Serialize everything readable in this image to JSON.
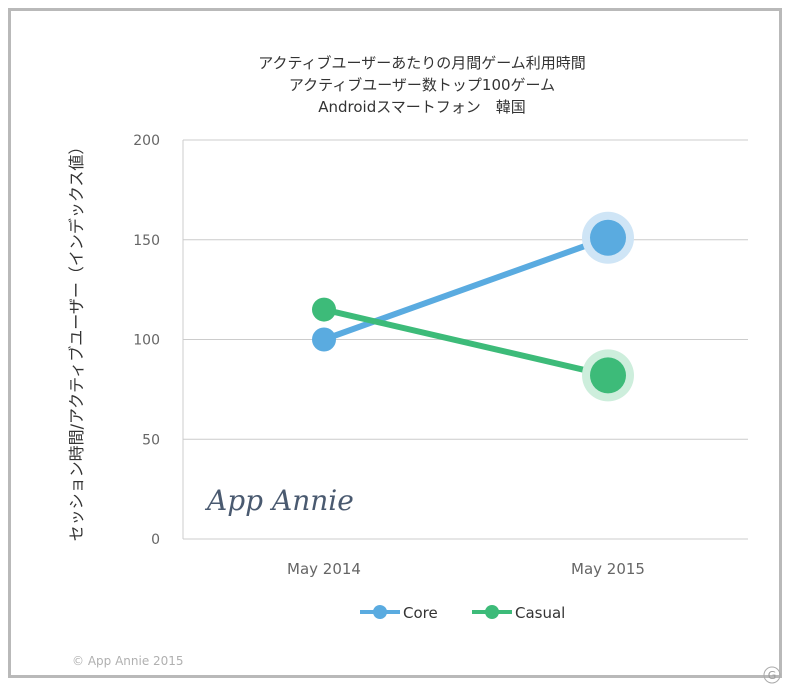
{
  "chart_data": {
    "type": "line",
    "title": [
      "アクティブユーザーあたりの月間ゲーム利用時間",
      "アクティブユーザー数トップ100ゲーム",
      "Androidスマートフォン　韓国"
    ],
    "ylabel": "セッション時間/アクティブユーザー（インデックス値）",
    "xlabel": "",
    "categories": [
      "May 2014",
      "May 2015"
    ],
    "ylim": [
      0,
      200
    ],
    "yticks": [
      0,
      50,
      100,
      150,
      200
    ],
    "grid": true,
    "legend_position": "bottom",
    "series": [
      {
        "name": "Core",
        "values": [
          100,
          151
        ],
        "color": "#5aabe0",
        "halo": "#cfe5f6"
      },
      {
        "name": "Casual",
        "values": [
          115,
          82
        ],
        "color": "#3dbb79",
        "halo": "#cdeedc"
      }
    ]
  },
  "watermark": "App Annie",
  "copyright": "© App Annie 2015",
  "corner_mark": "G"
}
